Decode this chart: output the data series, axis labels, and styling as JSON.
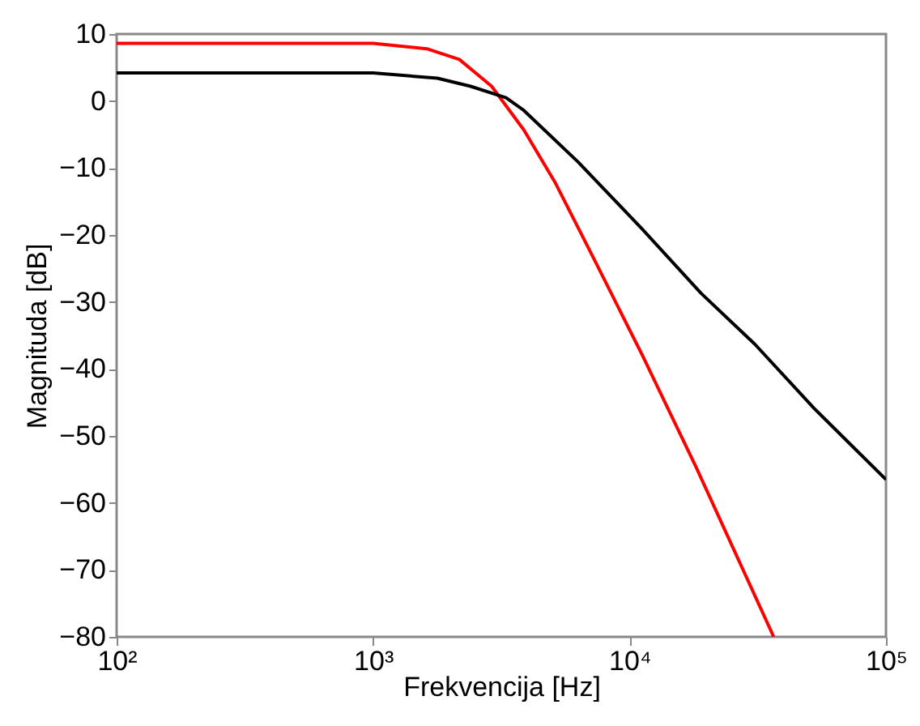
{
  "chart_data": {
    "type": "line",
    "xlabel": "Frekvencija [Hz]",
    "ylabel": "Magnituda [dB]",
    "log": "x",
    "grid": false,
    "legend": false,
    "marker": "none",
    "line_style": "solid",
    "xlim": [
      100,
      100000
    ],
    "ylim": [
      -80,
      10
    ],
    "xticks": [
      {
        "value": 100,
        "label": "10²"
      },
      {
        "value": 1000,
        "label": "10³"
      },
      {
        "value": 10000,
        "label": "10⁴"
      },
      {
        "value": 100000,
        "label": "10⁵"
      }
    ],
    "yticks": [
      -80,
      -70,
      -60,
      -50,
      -40,
      -30,
      -20,
      -10,
      0,
      10
    ],
    "series": [
      {
        "color": "#ff0000",
        "x": [
          100,
          1000,
          1620,
          2170,
          2900,
          3870,
          5150,
          7250,
          11200,
          18200,
          36500
        ],
        "values": [
          8.6,
          8.6,
          7.8,
          6.2,
          2.2,
          -4.3,
          -12.3,
          -23.5,
          -37.9,
          -54.7,
          -80
        ]
      },
      {
        "color": "#000000",
        "x": [
          100,
          1000,
          1780,
          2400,
          3300,
          3870,
          6300,
          11200,
          19000,
          30800,
          52500,
          100000
        ],
        "values": [
          4.2,
          4.2,
          3.4,
          2.2,
          0.5,
          -1.4,
          -9.1,
          -19.1,
          -28.7,
          -36.3,
          -45.9,
          -56.5
        ]
      }
    ]
  }
}
